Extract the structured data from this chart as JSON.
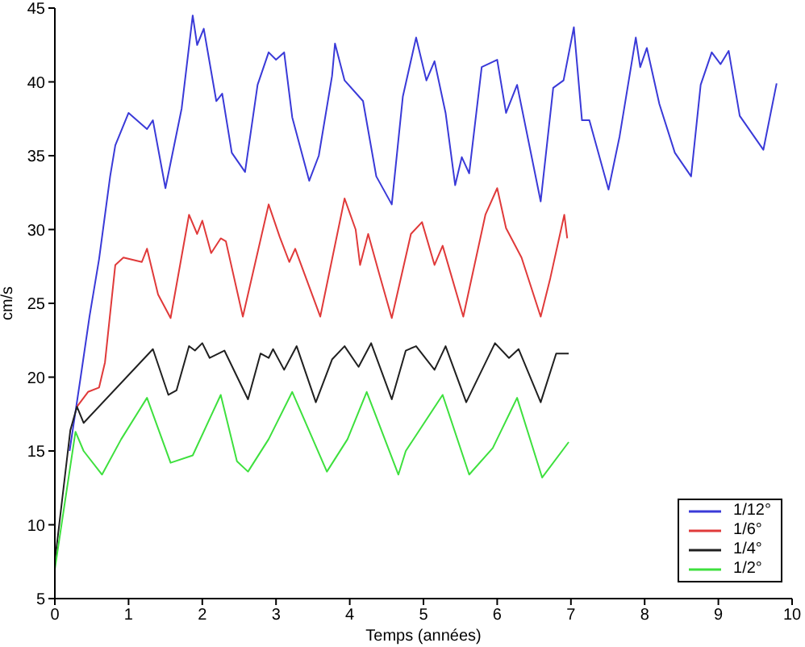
{
  "chart_data": {
    "type": "line",
    "xlabel": "Temps (années)",
    "ylabel": "cm/s",
    "xlim": [
      0,
      10
    ],
    "ylim": [
      5,
      45
    ],
    "xticks": [
      0,
      1,
      2,
      3,
      4,
      5,
      6,
      7,
      8,
      9,
      10
    ],
    "yticks": [
      5,
      10,
      15,
      20,
      25,
      30,
      35,
      40,
      45
    ],
    "grid": false,
    "legend": "bottom right",
    "marker": "none",
    "line_style": "solid",
    "series": [
      {
        "name": "1/12°",
        "color": "#3a3ad8",
        "x": [
          0.2,
          0.35,
          0.47,
          0.6,
          0.75,
          0.82,
          1.0,
          1.25,
          1.33,
          1.5,
          1.72,
          1.87,
          1.93,
          2.02,
          2.19,
          2.27,
          2.4,
          2.58,
          2.75,
          2.9,
          3.0,
          3.11,
          3.22,
          3.45,
          3.58,
          3.76,
          3.8,
          3.93,
          4.18,
          4.36,
          4.57,
          4.72,
          4.9,
          5.04,
          5.15,
          5.3,
          5.43,
          5.52,
          5.62,
          5.79,
          6.0,
          6.12,
          6.27,
          6.59,
          6.76,
          6.9,
          7.04,
          7.15,
          7.25,
          7.51,
          7.66,
          7.88,
          7.94,
          8.03,
          8.2,
          8.41,
          8.63,
          8.76,
          8.91,
          9.03,
          9.14,
          9.29,
          9.61,
          9.79
        ],
        "values": [
          15,
          20,
          24.1,
          28,
          33.6,
          35.7,
          37.9,
          36.8,
          37.4,
          32.8,
          38.2,
          44.5,
          42.5,
          43.6,
          38.7,
          39.2,
          35.2,
          33.9,
          39.8,
          42,
          41.5,
          42,
          37.6,
          33.3,
          35,
          40.4,
          42.6,
          40.1,
          38.7,
          33.6,
          31.7,
          39,
          43,
          40.1,
          41.4,
          37.9,
          33,
          34.9,
          33.8,
          41,
          41.5,
          37.9,
          39.8,
          31.9,
          39.6,
          40.1,
          43.7,
          37.4,
          37.4,
          32.7,
          36.3,
          43,
          41,
          42.3,
          38.5,
          35.2,
          33.6,
          39.8,
          42,
          41.2,
          42.1,
          37.7,
          35.4,
          39.9
        ]
      },
      {
        "name": "1/6°",
        "color": "#e03a3a",
        "x": [
          0.3,
          0.45,
          0.6,
          0.68,
          0.82,
          0.93,
          1.18,
          1.25,
          1.4,
          1.57,
          1.82,
          1.93,
          2.0,
          2.12,
          2.25,
          2.32,
          2.55,
          2.9,
          3.05,
          3.18,
          3.26,
          3.6,
          3.93,
          4.08,
          4.14,
          4.25,
          4.4,
          4.57,
          4.83,
          4.98,
          5.15,
          5.26,
          5.54,
          5.84,
          6.0,
          6.12,
          6.33,
          6.59,
          6.72,
          6.91,
          6.95
        ],
        "values": [
          18,
          19,
          19.3,
          21,
          27.6,
          28.1,
          27.8,
          28.7,
          25.6,
          24,
          31,
          29.7,
          30.6,
          28.4,
          29.4,
          29.2,
          24.1,
          31.7,
          29.5,
          27.8,
          28.7,
          24.1,
          32.1,
          30,
          27.6,
          29.7,
          27,
          24,
          29.7,
          30.5,
          27.6,
          28.9,
          24.1,
          31,
          32.8,
          30.1,
          28.1,
          24.1,
          26.7,
          31,
          29.4
        ]
      },
      {
        "name": "1/4°",
        "color": "#202020",
        "x": [
          0,
          0.21,
          0.3,
          0.39,
          1.33,
          1.54,
          1.65,
          1.82,
          1.9,
          2.0,
          2.1,
          2.3,
          2.62,
          2.79,
          2.9,
          2.96,
          3.11,
          3.28,
          3.54,
          3.76,
          3.93,
          4.12,
          4.29,
          4.57,
          4.76,
          4.9,
          5.15,
          5.3,
          5.58,
          5.97,
          6.16,
          6.29,
          6.59,
          6.8,
          6.97
        ],
        "values": [
          7.5,
          16.4,
          18,
          16.9,
          21.9,
          18.8,
          19.1,
          22.1,
          21.8,
          22.3,
          21.3,
          21.8,
          18.5,
          21.6,
          21.3,
          21.9,
          20.5,
          22.1,
          18.3,
          21.2,
          22.1,
          20.7,
          22.3,
          18.5,
          21.8,
          22.1,
          20.5,
          22.1,
          18.3,
          22.3,
          21.3,
          21.9,
          18.3,
          21.6,
          21.6
        ]
      },
      {
        "name": "1/2°",
        "color": "#3ee03e",
        "x": [
          0,
          0.28,
          0.39,
          0.64,
          0.9,
          1.25,
          1.57,
          1.87,
          2.25,
          2.47,
          2.62,
          2.9,
          3.22,
          3.69,
          3.97,
          4.23,
          4.66,
          4.76,
          5.26,
          5.62,
          5.94,
          6.27,
          6.61,
          6.97
        ],
        "values": [
          7,
          16.3,
          15,
          13.4,
          15.8,
          18.6,
          14.2,
          14.7,
          18.8,
          14.3,
          13.6,
          15.8,
          19,
          13.6,
          15.8,
          19,
          13.4,
          15,
          18.8,
          13.4,
          15.2,
          18.6,
          13.2,
          15.6
        ]
      }
    ]
  }
}
